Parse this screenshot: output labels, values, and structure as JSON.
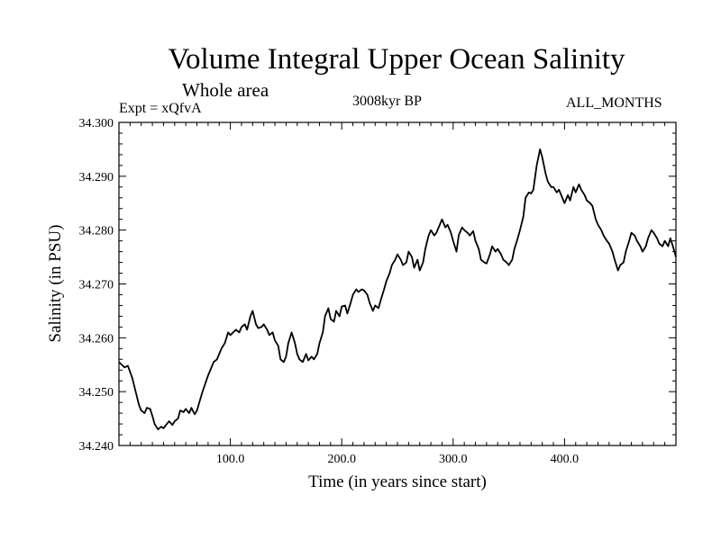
{
  "header": {
    "title": "Volume Integral Upper Ocean Salinity",
    "subtitle": "Whole area",
    "experiment": "Expt = xQfvA",
    "period": "3008kyr BP",
    "months": "ALL_MONTHS"
  },
  "chart_data": {
    "type": "line",
    "title": "Volume Integral Upper Ocean Salinity",
    "xlabel": "Time (in years since start)",
    "ylabel": "Salinity (in PSU)",
    "xlim": [
      0,
      500
    ],
    "ylim": [
      34.24,
      34.3
    ],
    "x_ticks": [
      100,
      200,
      300,
      400
    ],
    "x_tick_labels": [
      "100.0",
      "200.0",
      "300.0",
      "400.0"
    ],
    "y_ticks": [
      34.24,
      34.25,
      34.26,
      34.27,
      34.28,
      34.29,
      34.3
    ],
    "y_tick_labels": [
      "34.240",
      "34.250",
      "34.260",
      "34.270",
      "34.280",
      "34.290",
      "34.300"
    ],
    "grid": false,
    "series": [
      {
        "name": "Salinity",
        "x": [
          0,
          5,
          8,
          12,
          15,
          18,
          20,
          23,
          25,
          28,
          30,
          32,
          35,
          38,
          40,
          43,
          45,
          48,
          50,
          53,
          55,
          58,
          60,
          63,
          65,
          68,
          70,
          75,
          80,
          85,
          88,
          92,
          95,
          98,
          100,
          105,
          108,
          110,
          113,
          115,
          118,
          120,
          123,
          125,
          128,
          130,
          133,
          135,
          138,
          140,
          143,
          145,
          148,
          150,
          152,
          155,
          158,
          160,
          162,
          165,
          168,
          170,
          173,
          175,
          178,
          180,
          183,
          185,
          188,
          190,
          193,
          195,
          198,
          200,
          203,
          205,
          208,
          210,
          213,
          215,
          218,
          220,
          223,
          225,
          228,
          230,
          233,
          235,
          238,
          240,
          243,
          245,
          248,
          250,
          253,
          255,
          258,
          260,
          263,
          265,
          268,
          270,
          273,
          275,
          278,
          280,
          283,
          285,
          288,
          290,
          293,
          295,
          298,
          300,
          303,
          305,
          308,
          310,
          313,
          315,
          318,
          320,
          323,
          325,
          328,
          330,
          333,
          335,
          338,
          340,
          343,
          345,
          348,
          350,
          353,
          355,
          358,
          360,
          363,
          365,
          368,
          370,
          372,
          375,
          378,
          380,
          383,
          385,
          388,
          390,
          393,
          395,
          398,
          400,
          403,
          405,
          408,
          410,
          413,
          415,
          418,
          420,
          423,
          425,
          428,
          430,
          433,
          435,
          438,
          440,
          443,
          445,
          448,
          450,
          453,
          455,
          458,
          460,
          463,
          465,
          468,
          470,
          473,
          475,
          478,
          480,
          483,
          485,
          488,
          490,
          493,
          495,
          498,
          500
        ],
        "y": [
          34.2555,
          34.2545,
          34.2548,
          34.2525,
          34.25,
          34.2475,
          34.2465,
          34.246,
          34.247,
          34.2468,
          34.2455,
          34.244,
          34.243,
          34.2435,
          34.2432,
          34.244,
          34.2445,
          34.2438,
          34.2445,
          34.245,
          34.2465,
          34.2462,
          34.2468,
          34.246,
          34.247,
          34.2458,
          34.2465,
          34.25,
          34.253,
          34.2555,
          34.256,
          34.258,
          34.259,
          34.261,
          34.2605,
          34.2615,
          34.261,
          34.262,
          34.2625,
          34.2615,
          34.264,
          34.265,
          34.2625,
          34.2618,
          34.262,
          34.2625,
          34.2615,
          34.2605,
          34.261,
          34.2595,
          34.2585,
          34.256,
          34.2555,
          34.2565,
          34.259,
          34.261,
          34.259,
          34.257,
          34.256,
          34.2555,
          34.257,
          34.2558,
          34.2565,
          34.256,
          34.257,
          34.259,
          34.261,
          34.264,
          34.2655,
          34.2635,
          34.263,
          34.265,
          34.264,
          34.2658,
          34.266,
          34.2645,
          34.2665,
          34.268,
          34.269,
          34.2685,
          34.269,
          34.2688,
          34.268,
          34.2665,
          34.265,
          34.266,
          34.2655,
          34.267,
          34.269,
          34.2705,
          34.272,
          34.2735,
          34.2745,
          34.2755,
          34.2745,
          34.2735,
          34.274,
          34.276,
          34.275,
          34.273,
          34.2745,
          34.2725,
          34.274,
          34.2765,
          34.279,
          34.28,
          34.279,
          34.2795,
          34.281,
          34.282,
          34.2805,
          34.281,
          34.2795,
          34.278,
          34.276,
          34.279,
          34.2805,
          34.28,
          34.2795,
          34.279,
          34.2798,
          34.278,
          34.2765,
          34.2745,
          34.274,
          34.2738,
          34.2755,
          34.277,
          34.276,
          34.2765,
          34.2755,
          34.2745,
          34.274,
          34.2735,
          34.2745,
          34.2765,
          34.2785,
          34.28,
          34.2825,
          34.286,
          34.287,
          34.2868,
          34.2875,
          34.292,
          34.295,
          34.2935,
          34.2905,
          34.289,
          34.288,
          34.288,
          34.287,
          34.2875,
          34.286,
          34.285,
          34.2865,
          34.2855,
          34.288,
          34.287,
          34.2885,
          34.2875,
          34.2865,
          34.2855,
          34.285,
          34.2845,
          34.282,
          34.281,
          34.28,
          34.279,
          34.278,
          34.2775,
          34.276,
          34.2745,
          34.2725,
          34.2735,
          34.274,
          34.276,
          34.278,
          34.2795,
          34.279,
          34.278,
          34.277,
          34.276,
          34.277,
          34.2785,
          34.28,
          34.2795,
          34.2785,
          34.2775,
          34.277,
          34.278,
          34.277,
          34.2785,
          34.2765,
          34.275
        ]
      }
    ]
  }
}
